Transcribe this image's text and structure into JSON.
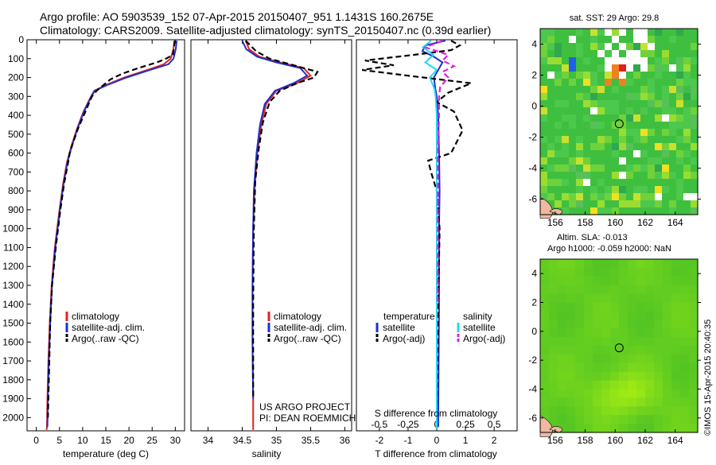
{
  "header": {
    "line1": "Argo profile: AO 5903539_152 07-Apr-2015 20150407_951 1.1431S 160.2675E",
    "line2": "Climatology: CARS2009. Satellite-adjusted climatology: synTS_20150407.nc (0.39d earlier)"
  },
  "colors": {
    "climatology": "#e8201c",
    "satellite": "#1f2fd0",
    "argo": "#000000",
    "sat_salinity": "#22d8f0",
    "argo_salinity": "#e020e0"
  },
  "chart_data": [
    {
      "type": "line",
      "name": "temperature-profile",
      "xlabel": "temperature (deg C)",
      "ylabel": "",
      "xlim": [
        -2,
        32
      ],
      "ylim": [
        2070,
        0
      ],
      "xticks": [
        "0",
        "5",
        "10",
        "15",
        "20",
        "25",
        "30"
      ],
      "xtick_values": [
        0,
        5,
        10,
        15,
        20,
        25,
        30
      ],
      "yticks": [
        "0",
        "100",
        "200",
        "300",
        "400",
        "500",
        "600",
        "700",
        "800",
        "900",
        "1000",
        "1100",
        "1200",
        "1300",
        "1400",
        "1500",
        "1600",
        "1700",
        "1800",
        "1900",
        "2000"
      ],
      "ytick_values": [
        0,
        100,
        200,
        300,
        400,
        500,
        600,
        700,
        800,
        900,
        1000,
        1100,
        1200,
        1300,
        1400,
        1500,
        1600,
        1700,
        1800,
        1900,
        2000
      ],
      "legend": [
        "climatology",
        "satellite-adj. clim.",
        "Argo(..raw -QC)"
      ],
      "series": [
        {
          "name": "climatology",
          "style": "solid",
          "color_key": "climatology",
          "x": [
            29.8,
            29.6,
            29.0,
            27.5,
            24,
            19,
            15,
            12.5,
            11.8,
            10.2,
            8.8,
            7.6,
            6.6,
            5.8,
            5.0,
            4.0,
            3.3,
            2.9,
            2.6,
            2.4,
            2.3,
            2.2
          ],
          "y": [
            5,
            50,
            100,
            130,
            160,
            200,
            240,
            270,
            300,
            380,
            470,
            560,
            650,
            760,
            900,
            1100,
            1300,
            1500,
            1700,
            1900,
            2050,
            2065
          ]
        },
        {
          "name": "satellite-adj. clim.",
          "style": "solid",
          "color_key": "satellite",
          "x": [
            30.3,
            30.1,
            29.6,
            28.5,
            24.5,
            19.5,
            15.3,
            12.6,
            11.9,
            10.3,
            8.9,
            7.7,
            6.7,
            5.9,
            5.1,
            4.1,
            3.4,
            3.0,
            2.7,
            2.5,
            2.4
          ],
          "y": [
            5,
            50,
            100,
            130,
            160,
            200,
            240,
            270,
            300,
            380,
            470,
            560,
            650,
            760,
            900,
            1100,
            1300,
            1500,
            1700,
            1900,
            2050
          ]
        },
        {
          "name": "Argo(..raw -QC)",
          "style": "dashed",
          "color_key": "argo",
          "x": [
            29.9,
            29.7,
            29.5,
            28.0,
            26.0,
            22.0,
            18.5,
            16.0,
            14.5,
            13.0,
            12.0,
            10.6,
            9.0,
            8.0,
            7.2,
            6.8,
            6.0,
            5.2,
            4.2,
            3.4,
            3.0,
            2.7,
            2.5
          ],
          "y": [
            5,
            40,
            80,
            100,
            120,
            150,
            180,
            210,
            240,
            270,
            300,
            380,
            470,
            540,
            600,
            660,
            760,
            900,
            1100,
            1300,
            1500,
            1800,
            2000
          ]
        }
      ]
    },
    {
      "type": "line",
      "name": "salinity-profile",
      "xlabel": "salinity",
      "xlim": [
        33.75,
        36.1
      ],
      "ylim": [
        2070,
        0
      ],
      "xticks": [
        "34",
        "34.5",
        "35",
        "35.5",
        "36"
      ],
      "xtick_values": [
        34,
        34.5,
        35,
        35.5,
        36
      ],
      "legend": [
        "climatology",
        "satellite-adj. clim.",
        "Argo(..raw -QC)"
      ],
      "series": [
        {
          "name": "climatology",
          "style": "solid",
          "color_key": "climatology",
          "x": [
            34.55,
            34.6,
            34.75,
            35.05,
            35.4,
            35.5,
            35.3,
            35.0,
            34.85,
            34.78,
            34.72,
            34.68,
            34.66,
            34.65,
            34.65,
            34.66,
            34.66
          ],
          "y": [
            5,
            50,
            90,
            120,
            150,
            190,
            230,
            270,
            340,
            450,
            600,
            800,
            1000,
            1300,
            1600,
            1900,
            2065
          ]
        },
        {
          "name": "satellite-adj. clim.",
          "style": "solid",
          "color_key": "satellite",
          "x": [
            34.5,
            34.56,
            34.72,
            35.0,
            35.35,
            35.45,
            35.25,
            34.98,
            34.83,
            34.76,
            34.71,
            34.67,
            34.66,
            34.65,
            34.65,
            34.66
          ],
          "y": [
            5,
            50,
            90,
            120,
            150,
            190,
            230,
            270,
            340,
            450,
            600,
            800,
            1000,
            1300,
            1600,
            1900
          ]
        },
        {
          "name": "Argo(..raw -QC)",
          "style": "dashed",
          "color_key": "argo",
          "x": [
            34.55,
            34.7,
            34.9,
            35.2,
            35.6,
            35.55,
            35.3,
            35.05,
            34.9,
            34.8,
            34.74,
            34.69,
            34.67,
            34.66,
            34.66
          ],
          "y": [
            5,
            60,
            100,
            130,
            170,
            200,
            230,
            270,
            330,
            440,
            580,
            750,
            1000,
            1400,
            1900
          ]
        }
      ],
      "annotations": [
        "US ARGO PROJECT",
        "PI: DEAN ROEMMICH"
      ]
    },
    {
      "type": "line",
      "name": "difference-profile",
      "xlabel": "T difference from climatology",
      "x2label": "S difference from climatology",
      "xlim": [
        -2.8,
        2.8
      ],
      "ylim": [
        2070,
        0
      ],
      "xticks": [
        "-2",
        "-1",
        "0",
        "1",
        "2"
      ],
      "xtick_values": [
        -2,
        -1,
        0,
        1,
        2
      ],
      "x2ticks": [
        "-0.5",
        "-0.25",
        "0",
        "0.25",
        "0.5"
      ],
      "x2tick_values": [
        -0.5,
        -0.25,
        0,
        0.25,
        0.5
      ],
      "x2lim": [
        -0.7,
        0.7
      ],
      "legend_groups": [
        {
          "title": "temperature",
          "items": [
            "satellite",
            "Argo(-adj)"
          ]
        },
        {
          "title": "salinity",
          "items": [
            "satellite",
            "Argo(-adj)"
          ]
        }
      ],
      "series": [
        {
          "name": "temperature satellite",
          "style": "solid",
          "color_key": "satellite",
          "axis": "T",
          "x": [
            0.3,
            -0.4,
            -0.5,
            -0.1,
            0.2,
            0.05,
            -0.1,
            -0.05,
            0.0,
            0.05,
            0.08,
            0.1,
            0.08,
            0.08,
            0.06,
            0.05
          ],
          "y": [
            5,
            30,
            60,
            90,
            120,
            160,
            200,
            260,
            300,
            400,
            600,
            800,
            1000,
            1400,
            1800,
            2050
          ]
        },
        {
          "name": "temperature Argo(-adj)",
          "style": "dashed",
          "color_key": "argo",
          "axis": "T",
          "x": [
            0.5,
            0.8,
            0.5,
            -0.8,
            -2.5,
            -1.5,
            -2.6,
            -1.0,
            1.2,
            0.4,
            0.0,
            0.6,
            0.9,
            0.5,
            -0.3,
            -0.2,
            0.0,
            0.1,
            0.05,
            0.0
          ],
          "y": [
            5,
            30,
            55,
            80,
            110,
            135,
            160,
            190,
            230,
            280,
            330,
            380,
            480,
            600,
            640,
            700,
            800,
            1000,
            1400,
            2000
          ]
        },
        {
          "name": "salinity satellite",
          "style": "solid",
          "color_key": "sat_salinity",
          "axis": "S",
          "x": [
            -0.05,
            -0.12,
            -0.03,
            -0.1,
            0.0,
            -0.06,
            -0.02,
            -0.01,
            0.0,
            0.0,
            0.0,
            0.0,
            0.0,
            0.0
          ],
          "y": [
            5,
            40,
            80,
            120,
            160,
            200,
            260,
            300,
            400,
            700,
            1000,
            1400,
            1800,
            2060
          ]
        },
        {
          "name": "salinity Argo(-adj)",
          "style": "dashed",
          "color_key": "argo_salinity",
          "axis": "S",
          "x": [
            0.05,
            -0.1,
            0.1,
            0.05,
            0.15,
            0.05,
            0.1,
            0.03,
            0.02,
            0.02,
            0.01,
            0.01,
            0.01
          ],
          "y": [
            5,
            40,
            80,
            110,
            140,
            170,
            200,
            250,
            300,
            400,
            600,
            1000,
            1400
          ]
        }
      ]
    },
    {
      "type": "heatmap",
      "name": "sst-map",
      "title": "sat. SST: 29 Argo: 29.8",
      "xlim": [
        155,
        165.5
      ],
      "ylim": [
        -7,
        5
      ],
      "xticks": [
        "156",
        "158",
        "160",
        "162",
        "164"
      ],
      "xtick_values": [
        156,
        158,
        160,
        162,
        164
      ],
      "yticks": [
        "4",
        "2",
        "0",
        "-2",
        "-4",
        "-6"
      ],
      "ytick_values": [
        4,
        2,
        0,
        -2,
        -4,
        -6
      ],
      "argo_position": {
        "lon": 160.2675,
        "lat": -1.1431
      }
    },
    {
      "type": "heatmap",
      "name": "sla-map",
      "title": "Altim. SLA: -0.013",
      "subtitle": "Argo h1000: -0.059 h2000: NaN",
      "xlim": [
        155,
        165.5
      ],
      "ylim": [
        -7,
        5
      ],
      "xticks": [
        "156",
        "158",
        "160",
        "162",
        "164"
      ],
      "xtick_values": [
        156,
        158,
        160,
        162,
        164
      ],
      "yticks": [
        "4",
        "2",
        "0",
        "-2",
        "-4",
        "-6"
      ],
      "ytick_values": [
        4,
        2,
        0,
        -2,
        -4,
        -6
      ],
      "argo_position": {
        "lon": 160.2675,
        "lat": -1.1431
      }
    }
  ],
  "footer_credit": "©IMOS 15-Apr-2015 20:40:35"
}
